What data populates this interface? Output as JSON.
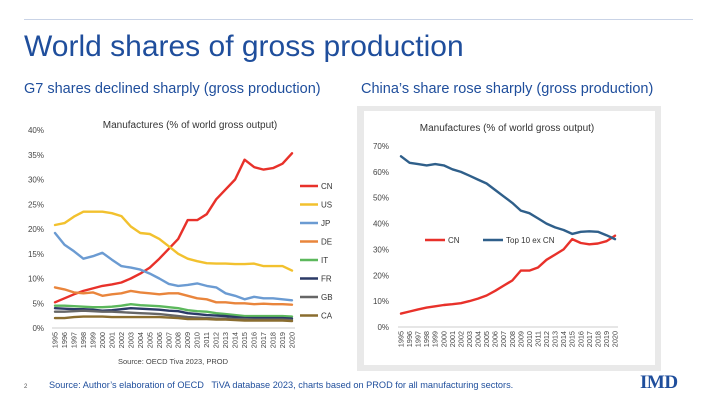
{
  "slide": {
    "title": "World shares of gross production",
    "left_subtitle": "G7 shares declined sharply (gross production)",
    "right_subtitle": "China’s share rose sharply (gross production)",
    "page_number": "2",
    "footer_source": "Source: Author’s elaboration of OECD   TiVA database 2023, charts based on PROD for all manufacturing sectors.",
    "logo_text": "IMD"
  },
  "chart_data": [
    {
      "type": "line",
      "title": "Manufactures (% of world gross output)",
      "source_note": "Source: OECD Tiva 2023, PROD",
      "ylim": [
        0,
        40
      ],
      "yticks": [
        "0%",
        "5%",
        "10%",
        "15%",
        "20%",
        "25%",
        "30%",
        "35%",
        "40%"
      ],
      "x": [
        "1995",
        "1996",
        "1997",
        "1998",
        "1999",
        "2000",
        "2001",
        "2002",
        "2003",
        "2004",
        "2005",
        "2006",
        "2007",
        "2008",
        "2009",
        "2010",
        "2011",
        "2012",
        "2013",
        "2014",
        "2015",
        "2016",
        "2017",
        "2018",
        "2019",
        "2020"
      ],
      "legend_position": "right",
      "grid": false,
      "series": [
        {
          "name": "CN",
          "color": "#e8312a",
          "values": [
            5.2,
            6.0,
            6.8,
            7.5,
            8.0,
            8.5,
            8.8,
            9.2,
            10.0,
            11.0,
            12.2,
            14.0,
            16.0,
            18.0,
            21.8,
            21.8,
            23.0,
            26.0,
            28.0,
            30.0,
            34.0,
            32.5,
            32.0,
            32.3,
            33.2,
            35.3
          ]
        },
        {
          "name": "US",
          "color": "#f2c12e",
          "values": [
            20.8,
            21.2,
            22.5,
            23.5,
            23.5,
            23.5,
            23.2,
            22.6,
            20.5,
            19.2,
            19.0,
            18.0,
            16.5,
            15.0,
            14.0,
            13.5,
            13.1,
            13.0,
            13.0,
            12.9,
            12.9,
            13.0,
            12.5,
            12.5,
            12.5,
            11.6
          ]
        },
        {
          "name": "JP",
          "color": "#6b9bd2",
          "values": [
            19.2,
            16.8,
            15.5,
            14.0,
            14.5,
            15.2,
            13.8,
            12.5,
            12.2,
            11.8,
            11.0,
            10.0,
            8.9,
            8.5,
            8.7,
            9.0,
            8.5,
            8.2,
            7.0,
            6.5,
            5.8,
            6.3,
            6.0,
            6.0,
            5.8,
            5.6
          ]
        },
        {
          "name": "DE",
          "color": "#e9853c",
          "values": [
            8.2,
            7.8,
            7.2,
            7.0,
            7.2,
            6.5,
            6.8,
            7.0,
            7.5,
            7.2,
            7.0,
            6.8,
            7.0,
            7.0,
            6.5,
            6.0,
            5.8,
            5.2,
            5.2,
            5.0,
            5.0,
            4.8,
            4.9,
            4.8,
            4.8,
            4.7
          ]
        },
        {
          "name": "IT",
          "color": "#5cb85c",
          "values": [
            4.5,
            4.5,
            4.4,
            4.3,
            4.2,
            4.2,
            4.3,
            4.5,
            4.8,
            4.6,
            4.5,
            4.4,
            4.2,
            4.0,
            3.6,
            3.4,
            3.3,
            3.0,
            2.8,
            2.6,
            2.4,
            2.4,
            2.4,
            2.4,
            2.4,
            2.3
          ]
        },
        {
          "name": "FR",
          "color": "#2b3a67",
          "values": [
            4.0,
            3.9,
            3.8,
            3.8,
            3.7,
            3.5,
            3.6,
            3.8,
            4.0,
            3.9,
            3.8,
            3.7,
            3.5,
            3.4,
            3.0,
            2.8,
            2.6,
            2.5,
            2.4,
            2.2,
            2.0,
            2.0,
            2.0,
            2.0,
            2.0,
            1.9
          ]
        },
        {
          "name": "GB",
          "color": "#666666",
          "values": [
            3.3,
            3.3,
            3.4,
            3.5,
            3.4,
            3.3,
            3.3,
            3.2,
            3.1,
            3.0,
            2.9,
            2.8,
            2.6,
            2.4,
            2.2,
            2.1,
            2.0,
            1.9,
            1.9,
            1.8,
            1.8,
            1.7,
            1.7,
            1.7,
            1.7,
            1.6
          ]
        },
        {
          "name": "CA",
          "color": "#8a6d2f",
          "values": [
            2.0,
            2.0,
            2.2,
            2.3,
            2.3,
            2.3,
            2.2,
            2.2,
            2.2,
            2.2,
            2.2,
            2.2,
            2.1,
            2.0,
            1.8,
            1.8,
            1.8,
            1.7,
            1.7,
            1.6,
            1.5,
            1.5,
            1.5,
            1.5,
            1.5,
            1.4
          ]
        }
      ]
    },
    {
      "type": "line",
      "title": "Manufactures (% of world gross output)",
      "ylim": [
        0,
        70
      ],
      "yticks": [
        "0%",
        "10%",
        "20%",
        "30%",
        "40%",
        "50%",
        "60%",
        "70%"
      ],
      "x": [
        "1995",
        "1996",
        "1997",
        "1998",
        "1999",
        "2000",
        "2001",
        "2002",
        "2003",
        "2004",
        "2005",
        "2006",
        "2007",
        "2008",
        "2009",
        "2010",
        "2011",
        "2012",
        "2013",
        "2014",
        "2015",
        "2016",
        "2017",
        "2018",
        "2019",
        "2020"
      ],
      "legend_position": "center",
      "grid": false,
      "series": [
        {
          "name": "CN",
          "color": "#e8312a",
          "values": [
            5.2,
            6.0,
            6.8,
            7.5,
            8.0,
            8.5,
            8.8,
            9.2,
            10.0,
            11.0,
            12.2,
            14.0,
            16.0,
            18.0,
            21.8,
            21.8,
            23.0,
            26.0,
            28.0,
            30.0,
            34.0,
            32.5,
            32.0,
            32.3,
            33.2,
            35.3
          ]
        },
        {
          "name": "Top  10 ex CN",
          "color": "#2f5f8a",
          "values": [
            66,
            63.5,
            63,
            62.5,
            63,
            62.5,
            61,
            60,
            58.5,
            57,
            55.5,
            53,
            50.5,
            48,
            45,
            44,
            42,
            40,
            38.5,
            37.5,
            36,
            36.8,
            37,
            36.8,
            35.5,
            34
          ]
        }
      ]
    }
  ]
}
